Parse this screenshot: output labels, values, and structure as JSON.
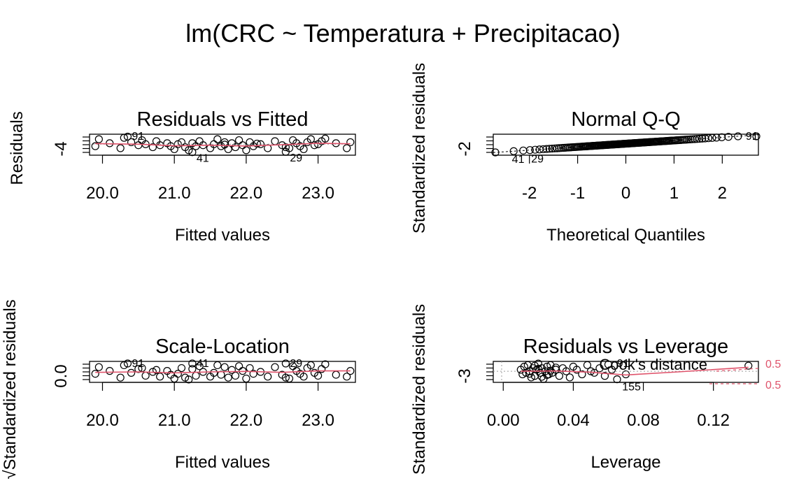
{
  "figure_title": "lm(CRC ~ Temperatura + Precipitacao)",
  "chart_data": [
    {
      "id": "panel-1",
      "type": "scatter",
      "title": "Residuals vs Fitted",
      "xlabel": "Fitted values",
      "ylabel": "Residuals",
      "xticks": [
        "20.0",
        "21.0",
        "22.0",
        "23.0"
      ],
      "xtick_values": [
        20.0,
        21.0,
        22.0,
        23.0
      ],
      "yticks": [
        "-4"
      ],
      "ytick_values": [
        -4
      ],
      "xlim": [
        19.82,
        23.52
      ],
      "ylim": [
        -5.5,
        5.0
      ],
      "points_x": [
        19.9,
        19.95,
        20.1,
        20.25,
        20.3,
        20.4,
        20.5,
        20.55,
        20.6,
        20.7,
        20.75,
        20.8,
        20.9,
        20.95,
        21.0,
        21.05,
        21.1,
        21.15,
        21.2,
        21.25,
        21.3,
        21.35,
        21.4,
        21.5,
        21.55,
        21.6,
        21.65,
        21.7,
        21.75,
        21.8,
        21.85,
        21.9,
        21.95,
        22.0,
        22.05,
        22.1,
        22.2,
        22.3,
        22.4,
        22.5,
        22.55,
        22.6,
        22.65,
        22.7,
        22.75,
        22.8,
        22.85,
        22.9,
        22.95,
        23.0,
        23.05,
        23.1,
        23.25,
        23.4,
        23.45,
        20.35,
        21.25,
        22.55,
        21.7,
        22.15
      ],
      "points_y": [
        -1.0,
        2.5,
        0.5,
        -2.0,
        3.2,
        1.0,
        -0.5,
        2.0,
        0.0,
        -1.5,
        1.5,
        -0.5,
        0.5,
        -1.0,
        -2.5,
        0.0,
        1.0,
        -1.5,
        -3.0,
        0.5,
        -1.0,
        1.5,
        -0.5,
        -2.0,
        0.0,
        2.5,
        -1.0,
        1.0,
        -2.5,
        0.5,
        -1.5,
        2.0,
        -0.5,
        -3.0,
        1.0,
        -1.0,
        0.0,
        -2.0,
        1.5,
        -0.5,
        -1.5,
        -2.0,
        2.0,
        0.5,
        -1.0,
        -2.5,
        1.0,
        2.5,
        -0.5,
        0.0,
        1.5,
        2.8,
        0.5,
        -2.0,
        1.0,
        3.8,
        -4.0,
        -3.8,
        -0.2,
        0.3
      ],
      "smooth_x": [
        19.9,
        20.5,
        21.0,
        21.5,
        22.0,
        22.5,
        23.0,
        23.45
      ],
      "smooth_y": [
        0.3,
        0.0,
        -0.8,
        -0.5,
        -0.9,
        -0.3,
        0.5,
        0.2
      ],
      "annotations": [
        {
          "text": "91",
          "x": 20.35,
          "y": 3.8
        },
        {
          "text": "41",
          "x": 21.25,
          "y": -4.0
        },
        {
          "text": "29",
          "x": 22.55,
          "y": -3.8
        }
      ]
    },
    {
      "id": "panel-2",
      "type": "scatter",
      "title": "Normal Q-Q",
      "xlabel": "Theoretical Quantiles",
      "ylabel": "Standardized residuals",
      "xticks": [
        "-2",
        "-1",
        "0",
        "1",
        "2"
      ],
      "xtick_values": [
        -2,
        -1,
        0,
        1,
        2
      ],
      "yticks": [
        "-2"
      ],
      "ytick_values": [
        -2
      ],
      "xlim": [
        -2.75,
        2.75
      ],
      "ylim": [
        -3.4,
        2.8
      ],
      "qq_n": 150,
      "qq_slope": 0.95,
      "qq_intercept": 0.0,
      "annotations": [
        {
          "text": "91",
          "x": 2.4,
          "y": 2.4
        },
        {
          "text": "41",
          "x": -2.45,
          "y": -2.8
        },
        {
          "text": "29",
          "x": -2.05,
          "y": -2.7
        }
      ]
    },
    {
      "id": "panel-3",
      "type": "scatter",
      "title": "Scale-Location",
      "xlabel": "Fitted values",
      "ylabel": "√Standardized residuals",
      "xticks": [
        "20.0",
        "21.0",
        "22.0",
        "23.0"
      ],
      "xtick_values": [
        20.0,
        21.0,
        22.0,
        23.0
      ],
      "yticks": [
        "0.0"
      ],
      "ytick_values": [
        0.0
      ],
      "xlim": [
        19.82,
        23.52
      ],
      "ylim": [
        -0.3,
        1.9
      ],
      "points_x": [
        19.9,
        19.95,
        20.1,
        20.25,
        20.3,
        20.4,
        20.5,
        20.55,
        20.6,
        20.7,
        20.75,
        20.8,
        20.9,
        20.95,
        21.0,
        21.05,
        21.1,
        21.15,
        21.2,
        21.25,
        21.3,
        21.35,
        21.4,
        21.5,
        21.55,
        21.6,
        21.65,
        21.7,
        21.75,
        21.8,
        21.85,
        21.9,
        21.95,
        22.0,
        22.05,
        22.1,
        22.2,
        22.3,
        22.4,
        22.5,
        22.55,
        22.6,
        22.65,
        22.7,
        22.75,
        22.8,
        22.85,
        22.9,
        22.95,
        23.0,
        23.05,
        23.1,
        23.25,
        23.4,
        23.45,
        20.35,
        21.25,
        22.55
      ],
      "points_y": [
        0.6,
        1.3,
        0.9,
        0.2,
        1.5,
        0.7,
        1.1,
        1.2,
        0.4,
        0.8,
        1.0,
        0.3,
        0.9,
        0.5,
        0.1,
        0.6,
        1.2,
        0.2,
        0.0,
        1.1,
        0.4,
        1.4,
        0.8,
        0.3,
        0.7,
        1.5,
        0.5,
        1.3,
        0.2,
        1.0,
        0.4,
        1.4,
        0.9,
        0.1,
        1.2,
        0.6,
        0.8,
        0.3,
        1.3,
        0.5,
        0.2,
        0.1,
        1.4,
        0.9,
        0.6,
        0.3,
        1.2,
        1.5,
        0.7,
        0.4,
        1.1,
        1.6,
        0.5,
        0.3,
        0.9,
        1.7,
        1.7,
        1.7
      ],
      "smooth_x": [
        19.9,
        20.5,
        21.0,
        21.5,
        22.0,
        22.5,
        23.0,
        23.45
      ],
      "smooth_y": [
        0.75,
        0.8,
        0.7,
        0.8,
        0.85,
        0.75,
        0.9,
        0.9
      ],
      "annotations": [
        {
          "text": "91",
          "x": 20.35,
          "y": 1.7
        },
        {
          "text": "41",
          "x": 21.25,
          "y": 1.7
        },
        {
          "text": "29",
          "x": 22.55,
          "y": 1.7
        }
      ]
    },
    {
      "id": "panel-4",
      "type": "scatter",
      "title": "Residuals vs Leverage",
      "xlabel": "Leverage",
      "ylabel": "Standardized residuals",
      "xticks": [
        "0.00",
        "0.04",
        "0.08",
        "0.12"
      ],
      "xtick_values": [
        0.0,
        0.04,
        0.08,
        0.12
      ],
      "yticks": [
        "-3"
      ],
      "ytick_values": [
        -3
      ],
      "xlim": [
        -0.0057,
        0.1457
      ],
      "ylim": [
        -3.6,
        3.2
      ],
      "points_x": [
        0.01,
        0.011,
        0.012,
        0.013,
        0.014,
        0.015,
        0.016,
        0.017,
        0.018,
        0.019,
        0.02,
        0.021,
        0.022,
        0.023,
        0.024,
        0.025,
        0.026,
        0.027,
        0.028,
        0.03,
        0.032,
        0.034,
        0.036,
        0.038,
        0.04,
        0.042,
        0.045,
        0.048,
        0.05,
        0.052,
        0.055,
        0.058,
        0.06,
        0.062,
        0.065,
        0.07,
        0.14,
        0.015,
        0.02,
        0.025,
        0.03,
        0.018,
        0.022,
        0.027
      ],
      "points_y": [
        0.5,
        -1.0,
        1.5,
        -0.5,
        2.0,
        0.0,
        -2.0,
        1.0,
        -1.5,
        0.5,
        2.5,
        -0.5,
        1.0,
        -2.5,
        0.0,
        1.5,
        -1.0,
        2.0,
        -0.5,
        0.5,
        -1.5,
        1.0,
        0.0,
        -2.0,
        1.5,
        0.5,
        -1.0,
        2.0,
        0.0,
        -0.5,
        1.0,
        -1.5,
        2.2,
        0.5,
        -2.6,
        -1.0,
        1.8,
        -0.8,
        0.8,
        -1.2,
        1.2,
        1.8,
        -1.8,
        0.2
      ],
      "smooth_x": [
        0.01,
        0.03,
        0.05,
        0.06,
        0.07,
        0.1,
        0.14
      ],
      "smooth_y": [
        0.0,
        0.1,
        -0.3,
        -0.8,
        -1.2,
        -0.2,
        1.3
      ],
      "cook_label": "Cook's distance",
      "cook_levels": [
        "0.5",
        "0.5"
      ],
      "annotations": [
        {
          "text": "91",
          "x": 0.0625,
          "y": 2.6
        },
        {
          "text": "155",
          "x": 0.0655,
          "y": -3.0
        }
      ]
    }
  ]
}
